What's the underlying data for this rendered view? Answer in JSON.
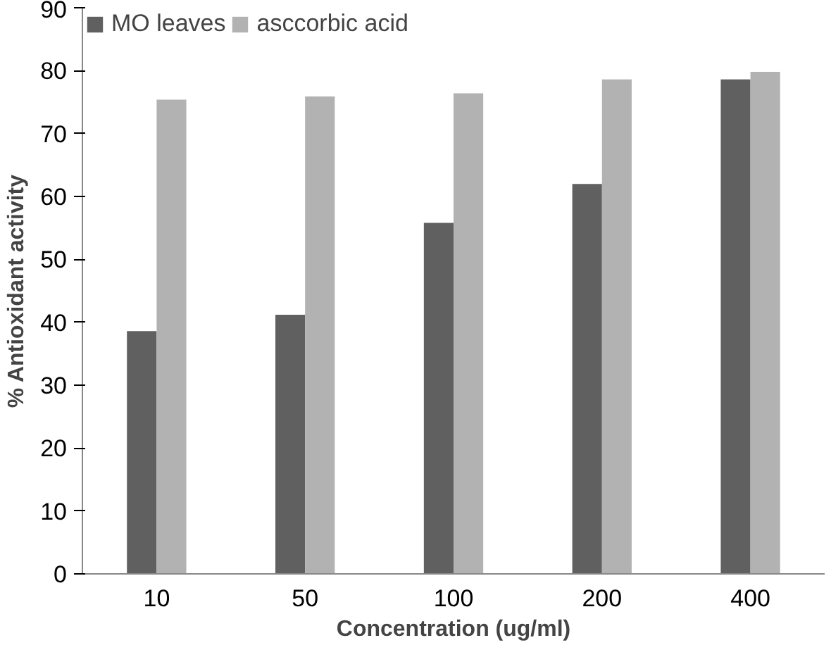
{
  "chart_data": {
    "type": "bar",
    "xlabel": "Concentration (ug/ml)",
    "ylabel": "% Antioxidant activity",
    "categories": [
      "10",
      "50",
      "100",
      "200",
      "400"
    ],
    "series": [
      {
        "name": "MO leaves",
        "color": "#606060",
        "values": [
          38.6,
          41.2,
          55.8,
          62.0,
          78.6
        ]
      },
      {
        "name": "asccorbic acid",
        "color": "#b2b2b2",
        "values": [
          75.4,
          75.9,
          76.4,
          78.6,
          79.8
        ]
      }
    ],
    "ylim": [
      0,
      90
    ],
    "yticks": [
      0,
      10,
      20,
      30,
      40,
      50,
      60,
      70,
      80,
      90
    ],
    "grid": false,
    "legend": "top left"
  }
}
